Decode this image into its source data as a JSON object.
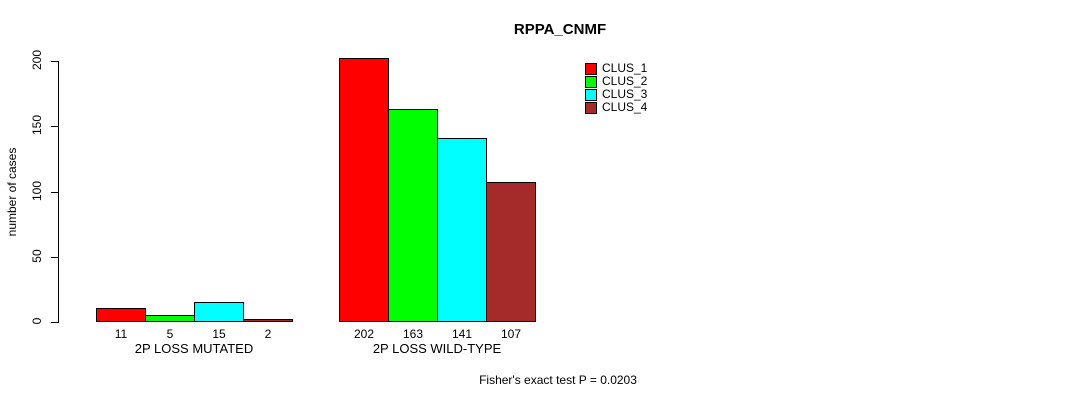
{
  "title": "RPPA_CNMF",
  "ylabel": "number of cases",
  "footer": "Fisher's exact test P = 0.0203",
  "legend": [
    {
      "label": "CLUS_1",
      "color": "#FF0000"
    },
    {
      "label": "CLUS_2",
      "color": "#00FF00"
    },
    {
      "label": "CLUS_3",
      "color": "#00FFFF"
    },
    {
      "label": "CLUS_4",
      "color": "#A52A2A"
    }
  ],
  "chart_data": {
    "type": "bar",
    "title": "RPPA_CNMF",
    "ylabel": "number of cases",
    "xlabel": "",
    "ylim": [
      0,
      200
    ],
    "yticks": [
      0,
      50,
      100,
      150,
      200
    ],
    "grid": false,
    "legend_position": "top-right",
    "bar_borders": "black",
    "categories": [
      "2P LOSS MUTATED",
      "2P LOSS WILD-TYPE"
    ],
    "series": [
      {
        "name": "CLUS_1",
        "color": "#FF0000",
        "values": [
          11,
          202
        ]
      },
      {
        "name": "CLUS_2",
        "color": "#00FF00",
        "values": [
          5,
          163
        ]
      },
      {
        "name": "CLUS_3",
        "color": "#00FFFF",
        "values": [
          15,
          141
        ]
      },
      {
        "name": "CLUS_4",
        "color": "#A52A2A",
        "values": [
          2,
          107
        ]
      }
    ],
    "bar_value_labels": [
      [
        "11",
        "5",
        "15",
        "2"
      ],
      [
        "202",
        "163",
        "141",
        "107"
      ]
    ],
    "annotation": "Fisher's exact test P = 0.0203"
  }
}
